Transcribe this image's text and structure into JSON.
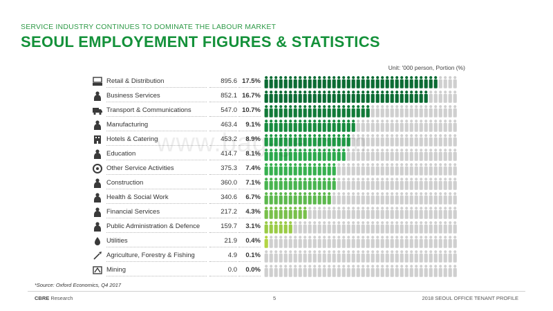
{
  "header": {
    "subtitle": "SERVICE INDUSTRY CONTINUES TO DOMINATE THE LABOUR MARKET",
    "title": "SEOUL EMPLOYEMENT FIGURES & STATISTICS",
    "unit": "Unit: '000 person, Portion (%)"
  },
  "watermark": "www.bag-ge.com",
  "chart_data": {
    "type": "pictograph",
    "title": "SEOUL EMPLOYEMENT FIGURES & STATISTICS",
    "unit": "Unit: '000 person, Portion (%)",
    "icons_total_per_row": 40,
    "rows": [
      {
        "label": "Retail & Distribution",
        "value": "895.6",
        "portion": "17.5%",
        "share": 17.5,
        "icon": "cash-register-icon",
        "color": "#0b6b33"
      },
      {
        "label": "Business Services",
        "value": "852.1",
        "portion": "16.7%",
        "share": 16.7,
        "icon": "businessman-icon",
        "color": "#0b6b33"
      },
      {
        "label": "Transport & Communications",
        "value": "547.0",
        "portion": "10.7%",
        "share": 10.7,
        "icon": "truck-icon",
        "color": "#117a38"
      },
      {
        "label": "Manufacturing",
        "value": "463.4",
        "portion": "9.1%",
        "share": 9.1,
        "icon": "worker-icon",
        "color": "#168a3e"
      },
      {
        "label": "Hotels & Catering",
        "value": "453.2",
        "portion": "8.9%",
        "share": 8.9,
        "icon": "hotel-icon",
        "color": "#1f9a45"
      },
      {
        "label": "Education",
        "value": "414.7",
        "portion": "8.1%",
        "share": 8.1,
        "icon": "teacher-icon",
        "color": "#2aa84c"
      },
      {
        "label": "Other Service Activities",
        "value": "375.3",
        "portion": "7.4%",
        "share": 7.4,
        "icon": "service-icon",
        "color": "#36b04f"
      },
      {
        "label": "Construction",
        "value": "360.0",
        "portion": "7.1%",
        "share": 7.1,
        "icon": "helmet-worker-icon",
        "color": "#48b44f"
      },
      {
        "label": "Health & Social Work",
        "value": "340.6",
        "portion": "6.7%",
        "share": 6.7,
        "icon": "health-icon",
        "color": "#5cb84d"
      },
      {
        "label": "Financial Services",
        "value": "217.2",
        "portion": "4.3%",
        "share": 4.3,
        "icon": "finance-icon",
        "color": "#78c04a"
      },
      {
        "label": "Public Administration & Defence",
        "value": "159.7",
        "portion": "3.1%",
        "share": 3.1,
        "icon": "official-icon",
        "color": "#9acb46"
      },
      {
        "label": "Utilities",
        "value": "21.9",
        "portion": "0.4%",
        "share": 0.4,
        "icon": "utilities-icon",
        "color": "#b3d444"
      },
      {
        "label": "Agriculture, Forestry & Fishing",
        "value": "4.9",
        "portion": "0.1%",
        "share": 0.1,
        "icon": "shovel-icon",
        "color": "#c4dc48"
      },
      {
        "label": "Mining",
        "value": "0.0",
        "portion": "0.0%",
        "share": 0.0,
        "icon": "mining-icon",
        "color": "#c4dc48"
      }
    ],
    "inactive_color": "#cfcfcf"
  },
  "footer": {
    "source": "*Source: Oxford Economics, Q4 2017",
    "brand_bold": "CBRE",
    "brand_rest": " Research",
    "page": "5",
    "report": "2018 SEOUL OFFICE TENANT PROFILE"
  }
}
